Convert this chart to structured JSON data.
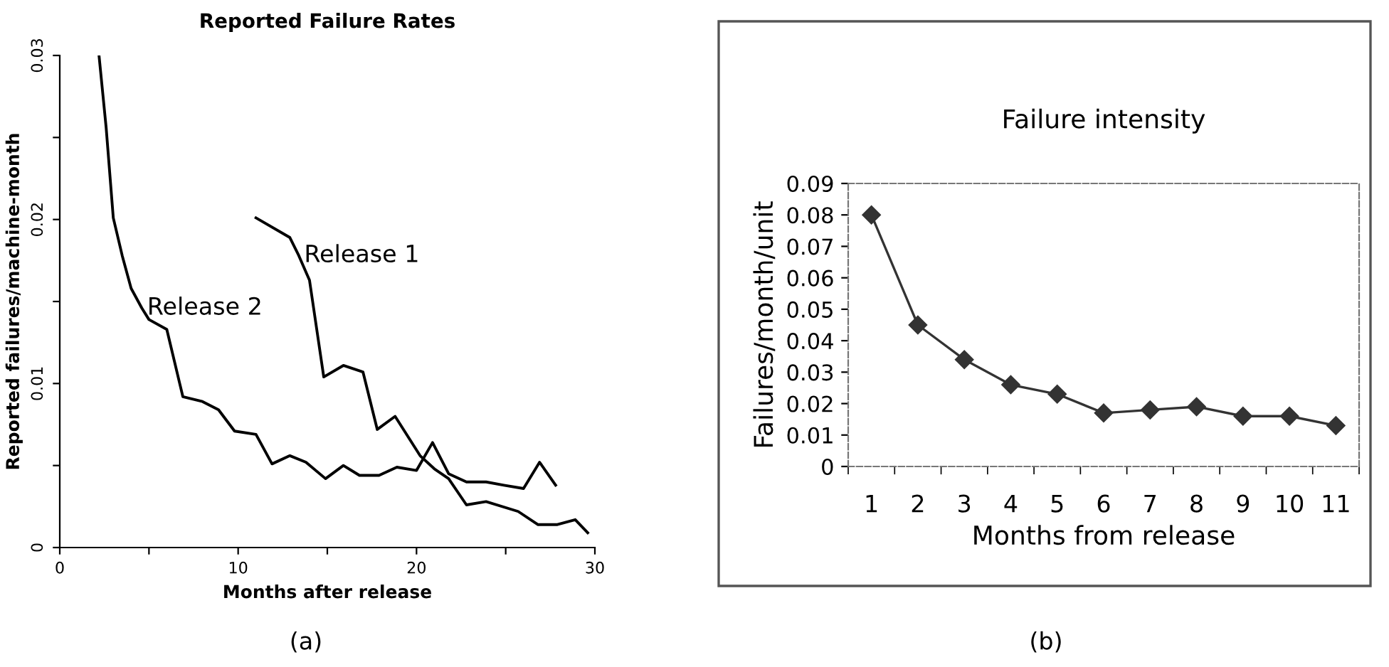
{
  "chart_data": [
    {
      "type": "line",
      "title": "Reported Failure Rates",
      "xlabel": "Months after release",
      "ylabel": "Reported failures/machine-month",
      "xlim": [
        0,
        30
      ],
      "ylim": [
        0,
        0.03
      ],
      "xticks": [
        0,
        {
          "value": 5,
          "label": null
        },
        10,
        {
          "value": 15,
          "label": null
        },
        20,
        {
          "value": 25,
          "label": null
        },
        30
      ],
      "yticks": [
        0,
        {
          "value": 0.005,
          "label": null
        },
        0.01,
        {
          "value": 0.015,
          "label": null
        },
        0.02,
        {
          "value": 0.025,
          "label": null
        },
        0.03
      ],
      "grid": false,
      "legend": false,
      "marker": "none",
      "line_style": "solid",
      "annotations": [
        "(a)"
      ],
      "series": [
        {
          "name": "Release 1",
          "color": "#000000",
          "x": [
            11,
            12.9,
            13.4,
            14,
            14.8,
            15.9,
            17,
            17.8,
            18.8,
            20.2,
            21,
            21.8,
            22.8,
            23.9,
            25.7,
            26.8,
            27.9,
            28.9,
            29.6
          ],
          "values": [
            0.0201,
            0.0189,
            0.0178,
            0.0163,
            0.0104,
            0.0111,
            0.0107,
            0.0072,
            0.008,
            0.0056,
            0.0048,
            0.0042,
            0.0026,
            0.0028,
            0.0022,
            0.0014,
            0.0014,
            0.0017,
            0.0009
          ]
        },
        {
          "name": "Release 2",
          "color": "#000000",
          "x": [
            2.2,
            2.6,
            3,
            3.5,
            4,
            4.6,
            5,
            6,
            6.9,
            8,
            8.9,
            9.8,
            11,
            11.9,
            12.9,
            13.8,
            14.9,
            15.9,
            16.8,
            17.9,
            18.9,
            20,
            20.9,
            21.8,
            22.8,
            23.9,
            24.9,
            26,
            26.9,
            27.8
          ],
          "values": [
            0.03,
            0.0256,
            0.0201,
            0.0178,
            0.0158,
            0.0146,
            0.0139,
            0.0133,
            0.0092,
            0.0089,
            0.0084,
            0.0071,
            0.0069,
            0.0051,
            0.0056,
            0.0052,
            0.0042,
            0.005,
            0.0044,
            0.0044,
            0.0049,
            0.0047,
            0.0064,
            0.0045,
            0.004,
            0.004,
            0.0038,
            0.0036,
            0.0052,
            0.0038
          ]
        }
      ]
    },
    {
      "type": "line",
      "title": "Failure intensity",
      "xlabel": "Months from release",
      "ylabel": "Failures/month/unit",
      "categories": [
        "1",
        "2",
        "3",
        "4",
        "5",
        "6",
        "7",
        "8",
        "9",
        "10",
        "11"
      ],
      "ylim": [
        0,
        0.09
      ],
      "yticks": [
        {
          "value": 0,
          "label": "0"
        },
        0.01,
        0.02,
        0.03,
        0.04,
        0.05,
        0.06,
        0.07,
        0.08,
        0.09
      ],
      "grid": false,
      "legend": false,
      "marker": "diamond",
      "line_style": "solid",
      "annotations": [
        "(b)"
      ],
      "series": [
        {
          "color": "#333333",
          "values": [
            0.08,
            0.045,
            0.034,
            0.026,
            0.023,
            0.017,
            0.018,
            0.019,
            0.016,
            0.016,
            0.013
          ]
        }
      ]
    }
  ]
}
